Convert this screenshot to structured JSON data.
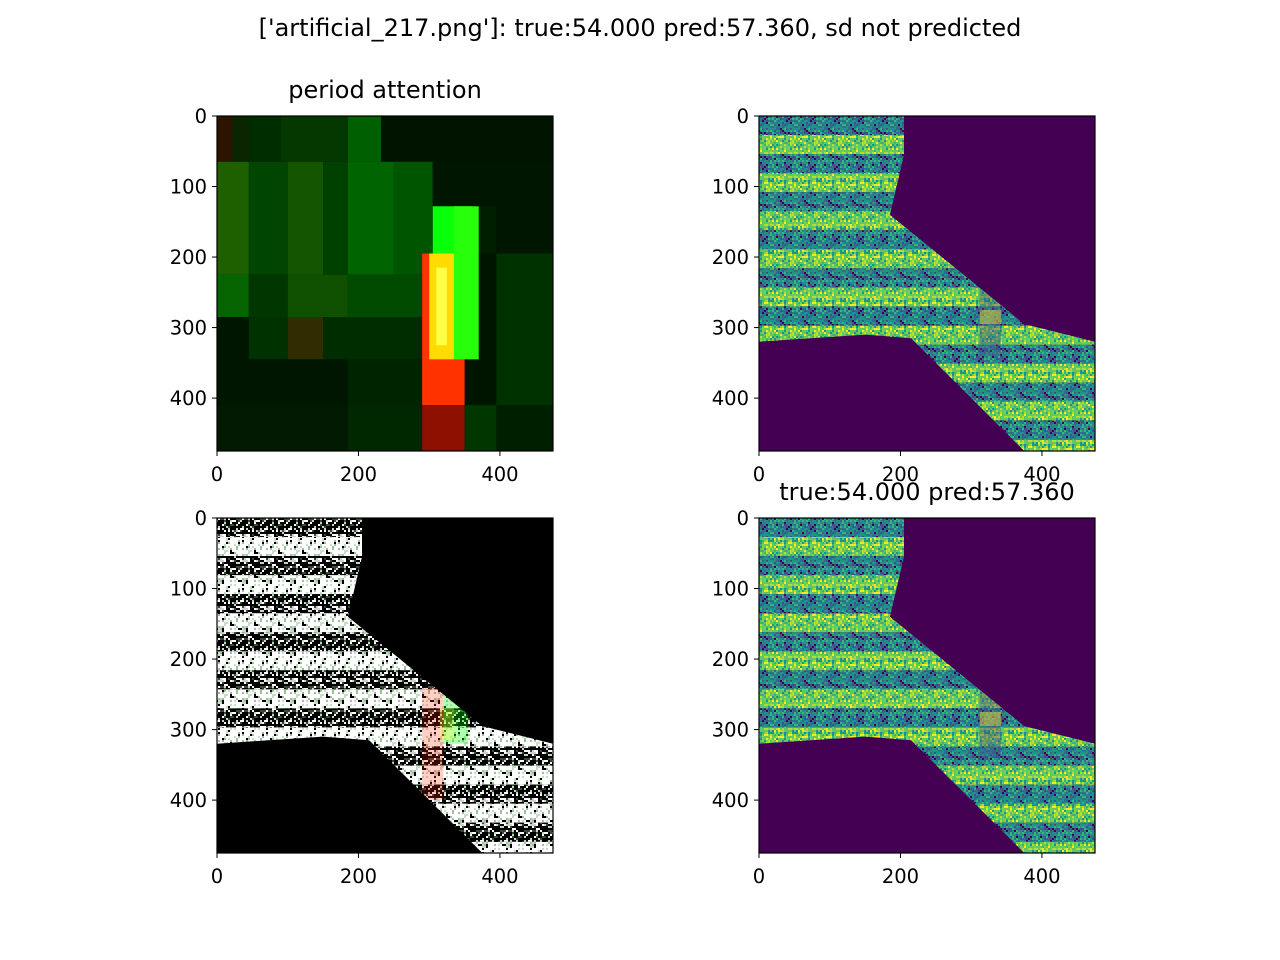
{
  "figure": {
    "suptitle": "['artificial_217.png']: true:54.000 pred:57.360, sd not predicted"
  },
  "colors": {
    "viridis_dark": "#440154",
    "viridis_teal": "#21918c",
    "viridis_green": "#5ec962",
    "viridis_yellow": "#fde725",
    "attention_green": "#00ff00",
    "attention_red": "#ff2000",
    "attention_yellow": "#ffff40",
    "overlay_background": "#000000",
    "overlay_stripe": "#ffffff"
  },
  "chart_data": [
    {
      "type": "heatmap",
      "name": "attention-map",
      "title": "period attention",
      "xlabel": "",
      "ylabel": "",
      "xlim": [
        0,
        475
      ],
      "ylim": [
        475,
        0
      ],
      "xticks": [
        0,
        200,
        400
      ],
      "yticks": [
        0,
        100,
        200,
        300,
        400
      ],
      "grid": false,
      "blocks": [
        {
          "x0": 0,
          "x1": 22,
          "y0": 0,
          "y1": 65,
          "r": 45,
          "g": 20,
          "b": 0
        },
        {
          "x0": 22,
          "x1": 45,
          "y0": 0,
          "y1": 65,
          "r": 10,
          "g": 38,
          "b": 0
        },
        {
          "x0": 45,
          "x1": 90,
          "y0": 0,
          "y1": 65,
          "r": 0,
          "g": 45,
          "b": 0
        },
        {
          "x0": 90,
          "x1": 185,
          "y0": 0,
          "y1": 65,
          "r": 5,
          "g": 55,
          "b": 0
        },
        {
          "x0": 185,
          "x1": 232,
          "y0": 0,
          "y1": 65,
          "r": 0,
          "g": 95,
          "b": 0
        },
        {
          "x0": 232,
          "x1": 475,
          "y0": 0,
          "y1": 65,
          "r": 0,
          "g": 20,
          "b": 0
        },
        {
          "x0": 0,
          "x1": 45,
          "y0": 65,
          "y1": 225,
          "r": 30,
          "g": 95,
          "b": 0
        },
        {
          "x0": 45,
          "x1": 100,
          "y0": 65,
          "y1": 225,
          "r": 0,
          "g": 70,
          "b": 0
        },
        {
          "x0": 100,
          "x1": 150,
          "y0": 65,
          "y1": 225,
          "r": 20,
          "g": 85,
          "b": 0
        },
        {
          "x0": 150,
          "x1": 185,
          "y0": 65,
          "y1": 225,
          "r": 0,
          "g": 65,
          "b": 0
        },
        {
          "x0": 185,
          "x1": 250,
          "y0": 65,
          "y1": 225,
          "r": 0,
          "g": 100,
          "b": 0
        },
        {
          "x0": 250,
          "x1": 305,
          "y0": 65,
          "y1": 225,
          "r": 0,
          "g": 85,
          "b": 0
        },
        {
          "x0": 305,
          "x1": 475,
          "y0": 65,
          "y1": 195,
          "r": 0,
          "g": 22,
          "b": 0
        },
        {
          "x0": 305,
          "x1": 360,
          "y0": 128,
          "y1": 195,
          "r": 10,
          "g": 255,
          "b": 10
        },
        {
          "x0": 360,
          "x1": 395,
          "y0": 128,
          "y1": 195,
          "r": 0,
          "g": 30,
          "b": 0
        },
        {
          "x0": 0,
          "x1": 45,
          "y0": 225,
          "y1": 285,
          "r": 5,
          "g": 100,
          "b": 0
        },
        {
          "x0": 45,
          "x1": 100,
          "y0": 225,
          "y1": 285,
          "r": 0,
          "g": 55,
          "b": 0
        },
        {
          "x0": 100,
          "x1": 185,
          "y0": 225,
          "y1": 285,
          "r": 15,
          "g": 80,
          "b": 0
        },
        {
          "x0": 185,
          "x1": 290,
          "y0": 225,
          "y1": 285,
          "r": 0,
          "g": 75,
          "b": 0
        },
        {
          "x0": 0,
          "x1": 45,
          "y0": 285,
          "y1": 345,
          "r": 0,
          "g": 22,
          "b": 0
        },
        {
          "x0": 45,
          "x1": 100,
          "y0": 285,
          "y1": 345,
          "r": 0,
          "g": 50,
          "b": 0
        },
        {
          "x0": 100,
          "x1": 150,
          "y0": 285,
          "y1": 345,
          "r": 50,
          "g": 45,
          "b": 0
        },
        {
          "x0": 150,
          "x1": 290,
          "y0": 285,
          "y1": 345,
          "r": 0,
          "g": 45,
          "b": 0
        },
        {
          "x0": 395,
          "x1": 475,
          "y0": 195,
          "y1": 410,
          "r": 0,
          "g": 50,
          "b": 0
        },
        {
          "x0": 0,
          "x1": 185,
          "y0": 345,
          "y1": 410,
          "r": 0,
          "g": 22,
          "b": 0
        },
        {
          "x0": 185,
          "x1": 290,
          "y0": 345,
          "y1": 410,
          "r": 0,
          "g": 35,
          "b": 0
        },
        {
          "x0": 0,
          "x1": 185,
          "y0": 410,
          "y1": 475,
          "r": 0,
          "g": 25,
          "b": 0
        },
        {
          "x0": 185,
          "x1": 290,
          "y0": 410,
          "y1": 475,
          "r": 0,
          "g": 40,
          "b": 0
        },
        {
          "x0": 350,
          "x1": 395,
          "y0": 410,
          "y1": 475,
          "r": 0,
          "g": 55,
          "b": 0
        },
        {
          "x0": 395,
          "x1": 475,
          "y0": 410,
          "y1": 475,
          "r": 0,
          "g": 30,
          "b": 0
        },
        {
          "x0": 290,
          "x1": 350,
          "y0": 195,
          "y1": 410,
          "r": 255,
          "g": 50,
          "b": 0
        },
        {
          "x0": 300,
          "x1": 335,
          "y0": 195,
          "y1": 345,
          "r": 255,
          "g": 220,
          "b": 0
        },
        {
          "x0": 310,
          "x1": 325,
          "y0": 215,
          "y1": 325,
          "r": 255,
          "g": 255,
          "b": 70
        },
        {
          "x0": 335,
          "x1": 370,
          "y0": 128,
          "y1": 345,
          "r": 40,
          "g": 255,
          "b": 10
        },
        {
          "x0": 290,
          "x1": 350,
          "y0": 410,
          "y1": 475,
          "r": 140,
          "g": 15,
          "b": 0
        }
      ]
    },
    {
      "type": "heatmap",
      "name": "input-image",
      "title": "",
      "xlabel": "",
      "ylabel": "",
      "xlim": [
        0,
        475
      ],
      "ylim": [
        475,
        0
      ],
      "xticks": [
        0,
        200,
        400
      ],
      "yticks": [
        0,
        100,
        200,
        300,
        400
      ],
      "grid": false,
      "colormap": "viridis",
      "stripe_period": 54,
      "textured_region": [
        [
          0,
          0
        ],
        [
          205,
          0
        ],
        [
          205,
          55
        ],
        [
          185,
          140
        ],
        [
          375,
          295
        ],
        [
          475,
          320
        ],
        [
          475,
          475
        ],
        [
          375,
          475
        ],
        [
          215,
          315
        ],
        [
          150,
          310
        ],
        [
          0,
          320
        ]
      ]
    },
    {
      "type": "heatmap",
      "name": "attention-overlay",
      "title": "",
      "xlabel": "",
      "ylabel": "",
      "xlim": [
        0,
        475
      ],
      "ylim": [
        475,
        0
      ],
      "xticks": [
        0,
        200,
        400
      ],
      "yticks": [
        0,
        100,
        200,
        300,
        400
      ],
      "grid": false,
      "stripe_period": 54,
      "textured_region": [
        [
          0,
          0
        ],
        [
          205,
          0
        ],
        [
          205,
          55
        ],
        [
          185,
          140
        ],
        [
          375,
          295
        ],
        [
          475,
          320
        ],
        [
          475,
          475
        ],
        [
          375,
          475
        ],
        [
          215,
          315
        ],
        [
          150,
          310
        ],
        [
          0,
          320
        ]
      ]
    },
    {
      "type": "heatmap",
      "name": "prediction-image",
      "title": "true:54.000 pred:57.360",
      "xlabel": "",
      "ylabel": "",
      "xlim": [
        0,
        475
      ],
      "ylim": [
        475,
        0
      ],
      "xticks": [
        0,
        200,
        400
      ],
      "yticks": [
        0,
        100,
        200,
        300,
        400
      ],
      "grid": false,
      "colormap": "viridis",
      "stripe_period": 54,
      "textured_region": [
        [
          0,
          0
        ],
        [
          205,
          0
        ],
        [
          205,
          55
        ],
        [
          185,
          140
        ],
        [
          375,
          295
        ],
        [
          475,
          320
        ],
        [
          475,
          475
        ],
        [
          375,
          475
        ],
        [
          215,
          315
        ],
        [
          150,
          310
        ],
        [
          0,
          320
        ]
      ]
    }
  ]
}
